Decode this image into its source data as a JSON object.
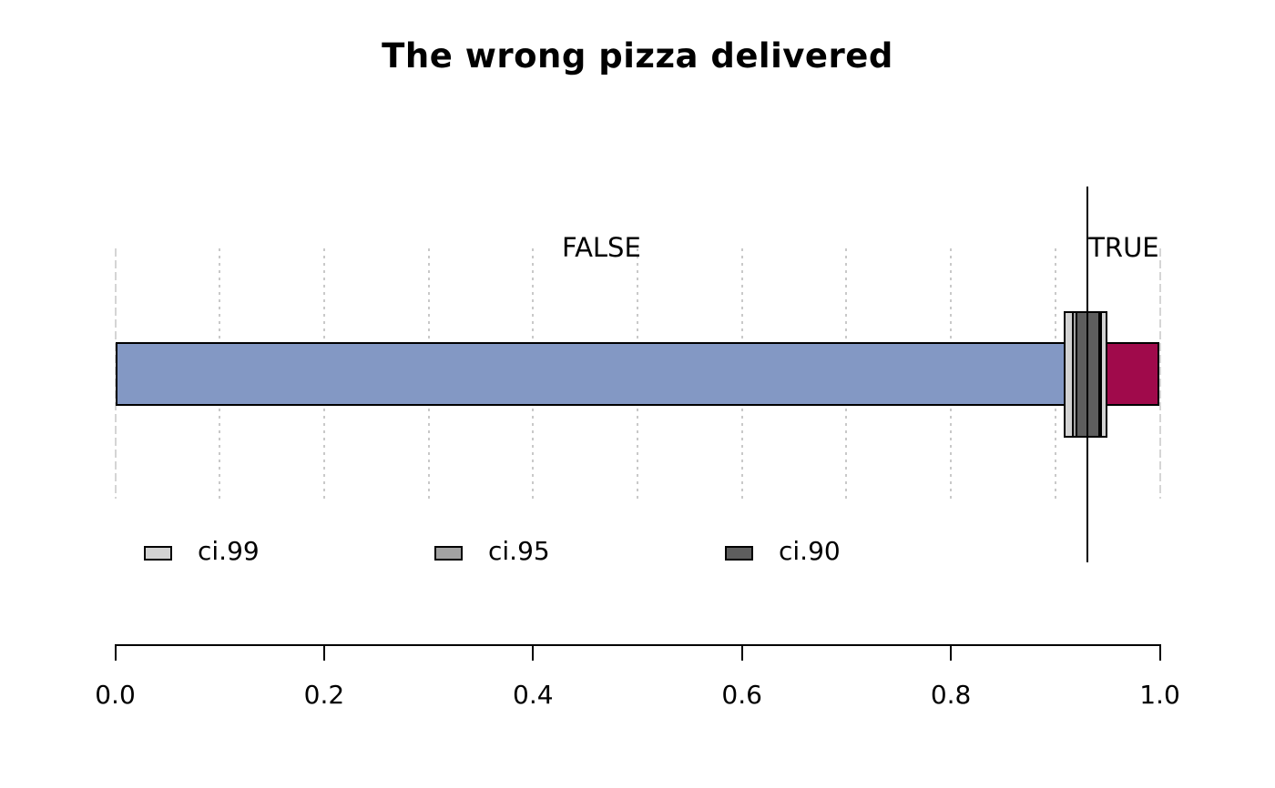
{
  "title": "The wrong pizza delivered",
  "chart_data": {
    "type": "bar",
    "subtype": "proportion-with-confidence-intervals",
    "title": "The wrong pizza delivered",
    "orientation": "horizontal",
    "grid": true,
    "x_axis": {
      "min": 0,
      "max": 1,
      "tick_values": [
        0,
        0.2,
        0.4,
        0.6,
        0.8,
        1.0
      ],
      "tick_labels": [
        "0.0",
        "0.2",
        "0.4",
        "0.6",
        "0.8",
        "1.0"
      ],
      "gridline_step": 0.1
    },
    "estimate": 0.931,
    "segments": [
      {
        "label": "FALSE",
        "from": 0,
        "to": 0.931,
        "color": "#8398c4"
      },
      {
        "label": "TRUE",
        "from": 0.931,
        "to": 1.0,
        "color": "#a00a4b"
      }
    ],
    "confidence_intervals": [
      {
        "label": "ci.99",
        "level": 0.99,
        "low": 0.908,
        "high": 0.95,
        "color": "#d3d3d3"
      },
      {
        "label": "ci.95",
        "level": 0.95,
        "low": 0.916,
        "high": 0.945,
        "color": "#a3a3a3"
      },
      {
        "label": "ci.90",
        "level": 0.9,
        "low": 0.919,
        "high": 0.943,
        "color": "#5e5e5e"
      }
    ],
    "legend": {
      "position": "bottom-left",
      "entries": [
        {
          "label": "ci.99",
          "color": "#d3d3d3"
        },
        {
          "label": "ci.95",
          "color": "#a3a3a3"
        },
        {
          "label": "ci.90",
          "color": "#5e5e5e"
        }
      ]
    }
  }
}
